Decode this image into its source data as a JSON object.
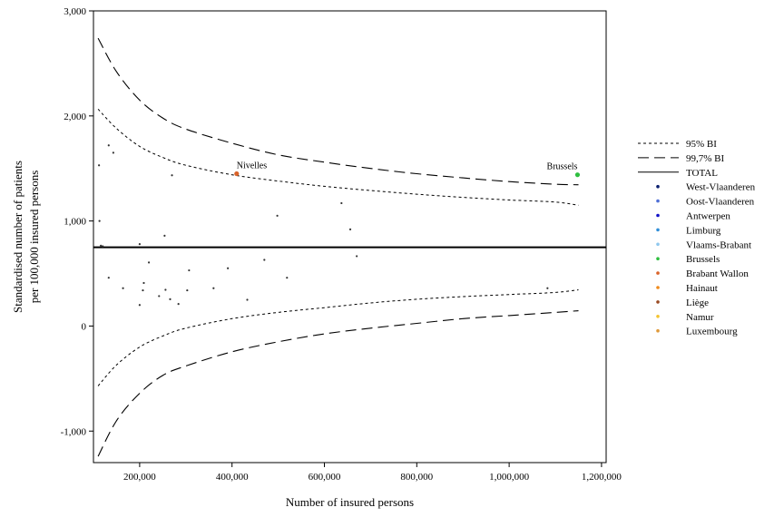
{
  "chart_data": {
    "type": "scatter",
    "xlabel": "Number of insured persons",
    "ylabel_lines": [
      "Standardised number of patients",
      "per 100,000 insured persons"
    ],
    "xlim": [
      100000,
      1210000
    ],
    "ylim": [
      -1300,
      3000
    ],
    "xticks": [
      200000,
      400000,
      600000,
      800000,
      1000000,
      1200000
    ],
    "xtick_labels": [
      "200,000",
      "400,000",
      "600,000",
      "800,000",
      "1,000,000",
      "1,200,000"
    ],
    "yticks": [
      -1000,
      0,
      1000,
      2000,
      3000
    ],
    "ytick_labels": [
      "-1,000",
      "0",
      "1,000",
      "2,000",
      "3,000"
    ],
    "total": 750,
    "ci_points_x": [
      110000,
      150000,
      200000,
      250000,
      300000,
      400000,
      500000,
      600000,
      700000,
      800000,
      900000,
      1000000,
      1100000,
      1150000
    ],
    "ci95_upper": [
      2065,
      1880,
      1710,
      1605,
      1530,
      1440,
      1380,
      1330,
      1290,
      1255,
      1225,
      1200,
      1180,
      1150
    ],
    "ci95_lower": [
      -570,
      -370,
      -200,
      -95,
      -20,
      70,
      130,
      175,
      220,
      255,
      280,
      300,
      320,
      345
    ],
    "ci997_upper": [
      2740,
      2420,
      2150,
      1980,
      1875,
      1740,
      1630,
      1560,
      1500,
      1450,
      1410,
      1375,
      1350,
      1345
    ],
    "ci997_lower": [
      -1240,
      -900,
      -640,
      -470,
      -380,
      -245,
      -150,
      -75,
      -20,
      25,
      70,
      100,
      130,
      145
    ],
    "legend": {
      "position": "right",
      "line_entries": [
        {
          "label": "95% BI",
          "dash": "short"
        },
        {
          "label": "99,7% BI",
          "dash": "long"
        },
        {
          "label": "TOTAL",
          "dash": "solid"
        }
      ],
      "marker_entries": [
        {
          "label": "West-Vlaanderen",
          "color": "#0a1f6e"
        },
        {
          "label": "Oost-Vlaanderen",
          "color": "#4f6fd6"
        },
        {
          "label": "Antwerpen",
          "color": "#1212c8"
        },
        {
          "label": "Limburg",
          "color": "#2f8ed8"
        },
        {
          "label": "Vlaams-Brabant",
          "color": "#8fc8ee"
        },
        {
          "label": "Brussels",
          "color": "#2fbf3f"
        },
        {
          "label": "Brabant Wallon",
          "color": "#d9632a"
        },
        {
          "label": "Hainaut",
          "color": "#f08a1a"
        },
        {
          "label": "Liège",
          "color": "#9a4a22"
        },
        {
          "label": "Namur",
          "color": "#f4c430"
        },
        {
          "label": "Luxembourg",
          "color": "#e09a3a"
        }
      ]
    },
    "points": [
      {
        "x": 1148000,
        "y": 1440,
        "color": "#2fbf3f",
        "label": "Brussels",
        "highlight": true
      },
      {
        "x": 410000,
        "y": 1450,
        "color": "#d9632a",
        "label": "Nivelles",
        "highlight": true
      },
      {
        "x": 112000,
        "y": 1530,
        "color": "#333333"
      },
      {
        "x": 133000,
        "y": 1720,
        "color": "#333333"
      },
      {
        "x": 143000,
        "y": 1650,
        "color": "#333333"
      },
      {
        "x": 113000,
        "y": 1000,
        "color": "#333333"
      },
      {
        "x": 116000,
        "y": 765,
        "color": "#333333"
      },
      {
        "x": 120000,
        "y": 760,
        "color": "#333333"
      },
      {
        "x": 133000,
        "y": 460,
        "color": "#333333"
      },
      {
        "x": 164000,
        "y": 360,
        "color": "#333333"
      },
      {
        "x": 200000,
        "y": 780,
        "color": "#333333"
      },
      {
        "x": 200000,
        "y": 200,
        "color": "#333333"
      },
      {
        "x": 207000,
        "y": 340,
        "color": "#333333"
      },
      {
        "x": 209000,
        "y": 410,
        "color": "#333333"
      },
      {
        "x": 220000,
        "y": 605,
        "color": "#333333"
      },
      {
        "x": 242000,
        "y": 285,
        "color": "#333333"
      },
      {
        "x": 254000,
        "y": 860,
        "color": "#333333"
      },
      {
        "x": 256000,
        "y": 345,
        "color": "#333333"
      },
      {
        "x": 266000,
        "y": 255,
        "color": "#333333"
      },
      {
        "x": 270000,
        "y": 1435,
        "color": "#333333"
      },
      {
        "x": 284000,
        "y": 210,
        "color": "#333333"
      },
      {
        "x": 303000,
        "y": 340,
        "color": "#333333"
      },
      {
        "x": 307000,
        "y": 530,
        "color": "#333333"
      },
      {
        "x": 360000,
        "y": 360,
        "color": "#333333"
      },
      {
        "x": 391000,
        "y": 550,
        "color": "#333333"
      },
      {
        "x": 433000,
        "y": 250,
        "color": "#333333"
      },
      {
        "x": 470000,
        "y": 630,
        "color": "#333333"
      },
      {
        "x": 498000,
        "y": 1050,
        "color": "#333333"
      },
      {
        "x": 519000,
        "y": 460,
        "color": "#333333"
      },
      {
        "x": 637000,
        "y": 1170,
        "color": "#333333"
      },
      {
        "x": 656000,
        "y": 920,
        "color": "#333333"
      },
      {
        "x": 670000,
        "y": 665,
        "color": "#333333"
      },
      {
        "x": 1083000,
        "y": 360,
        "color": "#333333"
      }
    ]
  }
}
